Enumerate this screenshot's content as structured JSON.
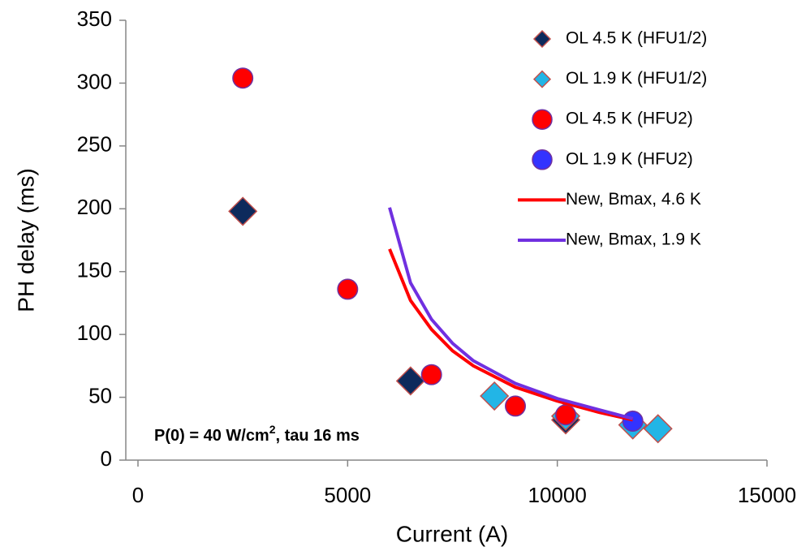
{
  "chart_data": {
    "type": "scatter",
    "xlabel": "Current (A)",
    "ylabel": "PH delay (ms)",
    "xlim": [
      0,
      15000
    ],
    "xticks": [
      0,
      5000,
      10000,
      15000
    ],
    "ylim": [
      0,
      350
    ],
    "yticks": [
      0,
      50,
      100,
      150,
      200,
      250,
      300,
      350
    ],
    "grid": false,
    "legend": "upper right",
    "annotation": [
      "P(0) = 40 W/cm",
      "2",
      ", tau 16 ms"
    ],
    "series": [
      {
        "name": "OL 4.5 K (HFU1/2)",
        "kind": "diamond",
        "color": "#0d2a5c",
        "x": [
          2500,
          6500,
          10200
        ],
        "values": [
          198,
          63,
          32
        ]
      },
      {
        "name": "OL 1.9 K (HFU1/2)",
        "kind": "diamond",
        "color": "#22b5e6",
        "x": [
          8500,
          10200,
          11800,
          12400
        ],
        "values": [
          51,
          35,
          28,
          25
        ]
      },
      {
        "name": "OL 4.5 K (HFU2)",
        "kind": "circle",
        "color": "#ff0000",
        "x": [
          2500,
          5000,
          7000,
          9000,
          10200
        ],
        "values": [
          304,
          136,
          68,
          43,
          36
        ]
      },
      {
        "name": "OL 1.9 K (HFU2)",
        "kind": "circle",
        "color": "#3333ff",
        "x": [
          11800
        ],
        "values": [
          31
        ]
      },
      {
        "name": "New, Bmax, 4.6 K",
        "kind": "line",
        "color": "#ff0000",
        "x": [
          6000,
          6500,
          7000,
          7500,
          8000,
          9000,
          10000,
          11000,
          11800
        ],
        "values": [
          168,
          127,
          104,
          87,
          75,
          58,
          47,
          38,
          32
        ]
      },
      {
        "name": "New, Bmax, 1.9 K",
        "kind": "line",
        "color": "#7030e0",
        "x": [
          6000,
          6500,
          7000,
          7500,
          8000,
          9000,
          10000,
          11000,
          11800
        ],
        "values": [
          201,
          141,
          112,
          93,
          79,
          61,
          49,
          40,
          33
        ]
      }
    ]
  }
}
